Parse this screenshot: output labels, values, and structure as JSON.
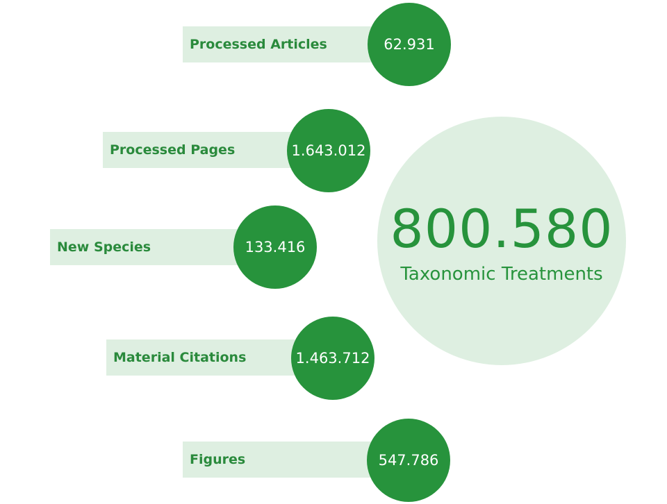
{
  "stats": [
    {
      "label": "Processed Articles",
      "value": "62.931"
    },
    {
      "label": "Processed Pages",
      "value": "1.643.012"
    },
    {
      "label": "New Species",
      "value": "133.416"
    },
    {
      "label": "Material Citations",
      "value": "1.463.712"
    },
    {
      "label": "Figures",
      "value": "547.786"
    }
  ],
  "hero": {
    "value": "800.580",
    "label": "Taxonomic Treatments"
  },
  "colors": {
    "dark_green": "#27933c",
    "light_green": "#deefe1",
    "label_text": "#2a8a3c"
  }
}
